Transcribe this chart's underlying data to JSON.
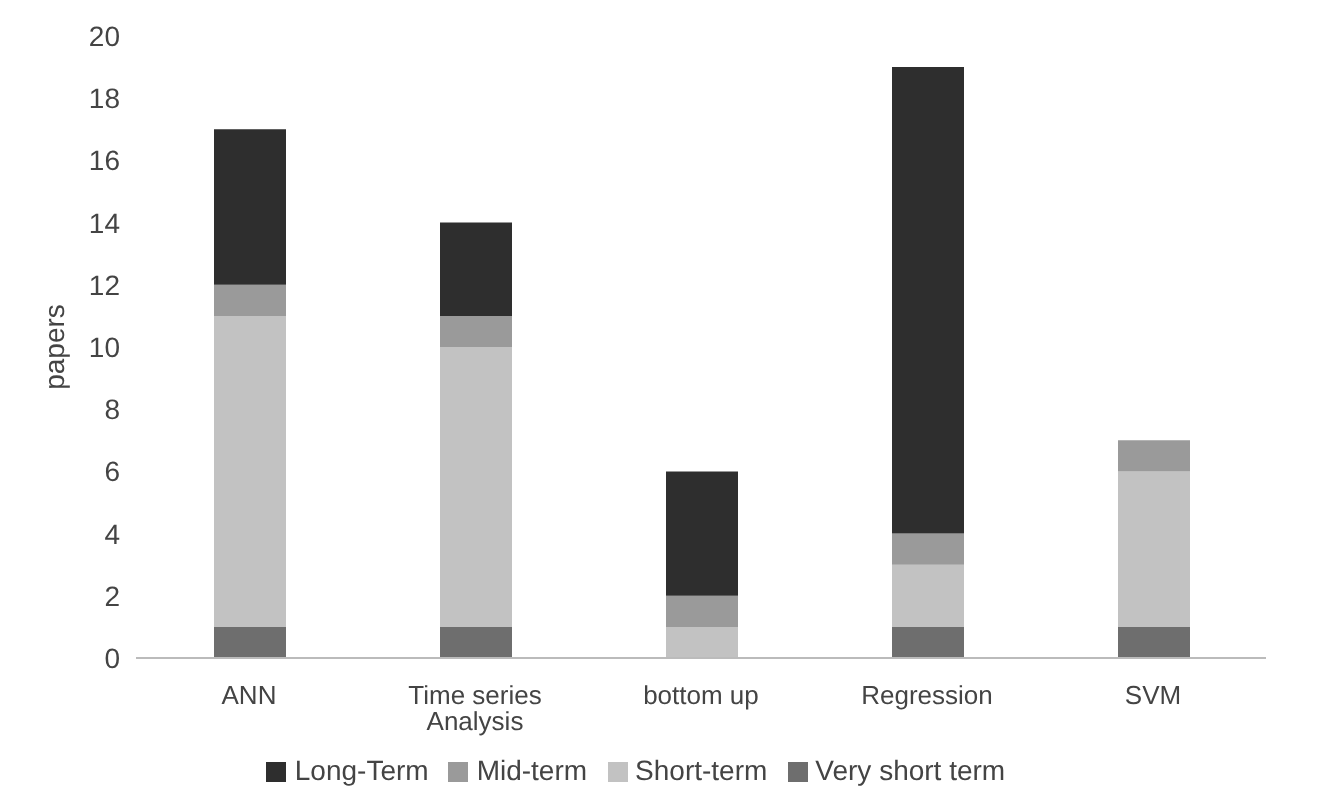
{
  "chart_data": {
    "type": "bar",
    "stacked": true,
    "ylabel": "papers",
    "categories": [
      "ANN",
      "Time series Analysis",
      "bottom up",
      "Regression",
      "SVM"
    ],
    "series": [
      {
        "name": "Very short term",
        "color": "#6e6e6e",
        "values": [
          1,
          1,
          0,
          1,
          1
        ]
      },
      {
        "name": "Short-term",
        "color": "#c2c2c2",
        "values": [
          10,
          9,
          1,
          2,
          5
        ]
      },
      {
        "name": "Mid-term",
        "color": "#9a9a9a",
        "values": [
          1,
          1,
          1,
          1,
          1
        ]
      },
      {
        "name": "Long-Term",
        "color": "#2e2e2e",
        "values": [
          5,
          3,
          4,
          15,
          0
        ]
      }
    ],
    "ylim": [
      0,
      20
    ],
    "yticks": [
      0,
      2,
      4,
      6,
      8,
      10,
      12,
      14,
      16,
      18,
      20
    ],
    "grid": false,
    "legend": "bottom"
  }
}
